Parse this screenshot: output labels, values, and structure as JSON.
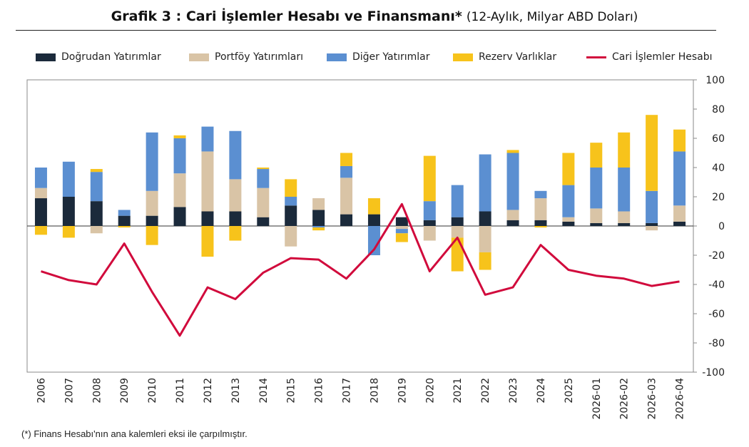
{
  "title": {
    "bold": "Grafik 3 : Cari İşlemler Hesabı ve Finansmanı*",
    "sub": "(12-Aylık, Milyar ABD Doları)"
  },
  "footnote": "(*) Finans Hesabı'nın ana kalemleri eksi ile çarpılmıştır.",
  "chart_data": {
    "type": "bar",
    "stacked": true,
    "categories": [
      "2006",
      "2007",
      "2008",
      "2009",
      "2010",
      "2011",
      "2012",
      "2013",
      "2014",
      "2015",
      "2016",
      "2017",
      "2018",
      "2019",
      "2020",
      "2021",
      "2022",
      "2023",
      "2024",
      "2025",
      "2026-01",
      "2026-02",
      "2026-03",
      "2026-04"
    ],
    "series": [
      {
        "name": "Doğrudan Yatırımlar",
        "color": "#1b2a3b",
        "values": [
          19,
          20,
          17,
          7,
          7,
          13,
          10,
          10,
          6,
          14,
          11,
          8,
          8,
          6,
          4,
          6,
          10,
          4,
          4,
          3,
          2,
          2,
          2,
          3
        ]
      },
      {
        "name": "Portföy Yatırımları",
        "color": "#d9c4a6",
        "values": [
          7,
          0,
          -5,
          0,
          17,
          23,
          41,
          22,
          20,
          -14,
          8,
          25,
          0,
          -2,
          -10,
          -8,
          -18,
          7,
          15,
          3,
          10,
          8,
          -3,
          11
        ]
      },
      {
        "name": "Diğer Yatırımlar",
        "color": "#5b8fd1",
        "values": [
          14,
          24,
          20,
          4,
          40,
          24,
          17,
          33,
          13,
          6,
          -1,
          8,
          -20,
          -3,
          13,
          22,
          39,
          39,
          5,
          22,
          28,
          30,
          22,
          37
        ]
      },
      {
        "name": "Rezerv Varlıklar",
        "color": "#f7c31b",
        "values": [
          -6,
          -8,
          2,
          -1,
          -13,
          2,
          -21,
          -10,
          1,
          12,
          -2,
          9,
          11,
          -6,
          31,
          -23,
          -12,
          2,
          -1,
          22,
          17,
          24,
          52,
          15
        ]
      }
    ],
    "line": {
      "name": "Cari İşlemler Hesabı",
      "color": "#d10a3c",
      "values": [
        -31,
        -37,
        -40,
        -12,
        -45,
        -75,
        -42,
        -50,
        -32,
        -22,
        -23,
        -36,
        -16,
        15,
        -31,
        -8,
        -47,
        -42,
        -13,
        -30,
        -34,
        -36,
        -41,
        -38
      ]
    },
    "ylim": [
      -100,
      100
    ],
    "yticks": [
      100,
      80,
      60,
      40,
      20,
      0,
      -20,
      -40,
      -60,
      -80,
      -100
    ],
    "yaxis_side": "right",
    "grid": false,
    "legend": "top"
  }
}
